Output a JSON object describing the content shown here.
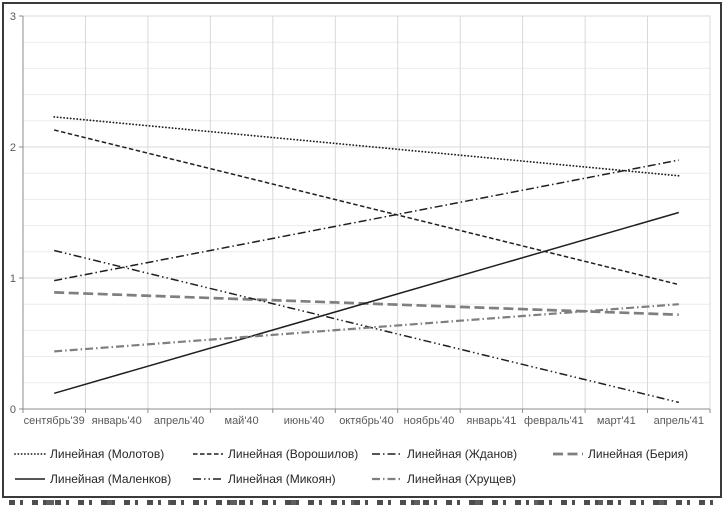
{
  "chart_data": {
    "type": "line",
    "title": "",
    "description": "Seven linear trendlines plotted from the first to the last category",
    "categories": [
      "сентябрь'39",
      "январь'40",
      "апрель'40",
      "май'40",
      "июнь'40",
      "октябрь'40",
      "ноябрь'40",
      "январь'41",
      "февраль'41",
      "март'41",
      "апрель'41"
    ],
    "y_axis": {
      "min": 0,
      "max": 3,
      "tick_labels": [
        "0",
        "1",
        "2",
        "3"
      ],
      "minor_step": 0.2,
      "grid": true
    },
    "x_axis": {
      "grid": true,
      "tick_marks": "between-categories"
    },
    "legend_position": "bottom",
    "colors": {
      "black_line": "#1f1f1f",
      "gray_line": "#7f7f7f",
      "gridline_major": "#d9d9d9",
      "gridline_minor": "#ebebeb",
      "axis_line": "#8c8c8c",
      "axis_text": "#595959",
      "frame": "#3a3a3a"
    },
    "series": [
      {
        "id": "molotov",
        "name": "Линейная (Молотов)",
        "line_style": "dotted",
        "color": "#1f1f1f",
        "width": 1.8,
        "start": 2.23,
        "end": 1.78
      },
      {
        "id": "voroshilov",
        "name": "Линейная (Ворошилов)",
        "line_style": "dash",
        "color": "#1f1f1f",
        "width": 1.5,
        "start": 2.13,
        "end": 0.95
      },
      {
        "id": "zhdanov",
        "name": "Линейная (Жданов)",
        "line_style": "dash-dot",
        "color": "#1f1f1f",
        "width": 1.5,
        "start": 0.98,
        "end": 1.9
      },
      {
        "id": "beriya",
        "name": "Линейная (Берия)",
        "line_style": "long-dash",
        "color": "#7f7f7f",
        "width": 2.7,
        "start": 0.89,
        "end": 0.72
      },
      {
        "id": "malenkov",
        "name": "Линейная (Маленков)",
        "line_style": "solid",
        "color": "#1f1f1f",
        "width": 1.5,
        "start": 0.12,
        "end": 1.5
      },
      {
        "id": "mikoyan",
        "name": "Линейная (Микоян)",
        "line_style": "dash-dot-dot",
        "color": "#1f1f1f",
        "width": 1.5,
        "start": 1.21,
        "end": 0.05
      },
      {
        "id": "khrushchev",
        "name": "Линейная (Хрущев)",
        "line_style": "dash-dot",
        "color": "#7f7f7f",
        "width": 2.2,
        "start": 0.44,
        "end": 0.8
      }
    ],
    "legend_rows": [
      [
        "molotov",
        "voroshilov",
        "zhdanov",
        "beriya"
      ],
      [
        "malenkov",
        "mikoyan",
        "khrushchev"
      ]
    ]
  }
}
